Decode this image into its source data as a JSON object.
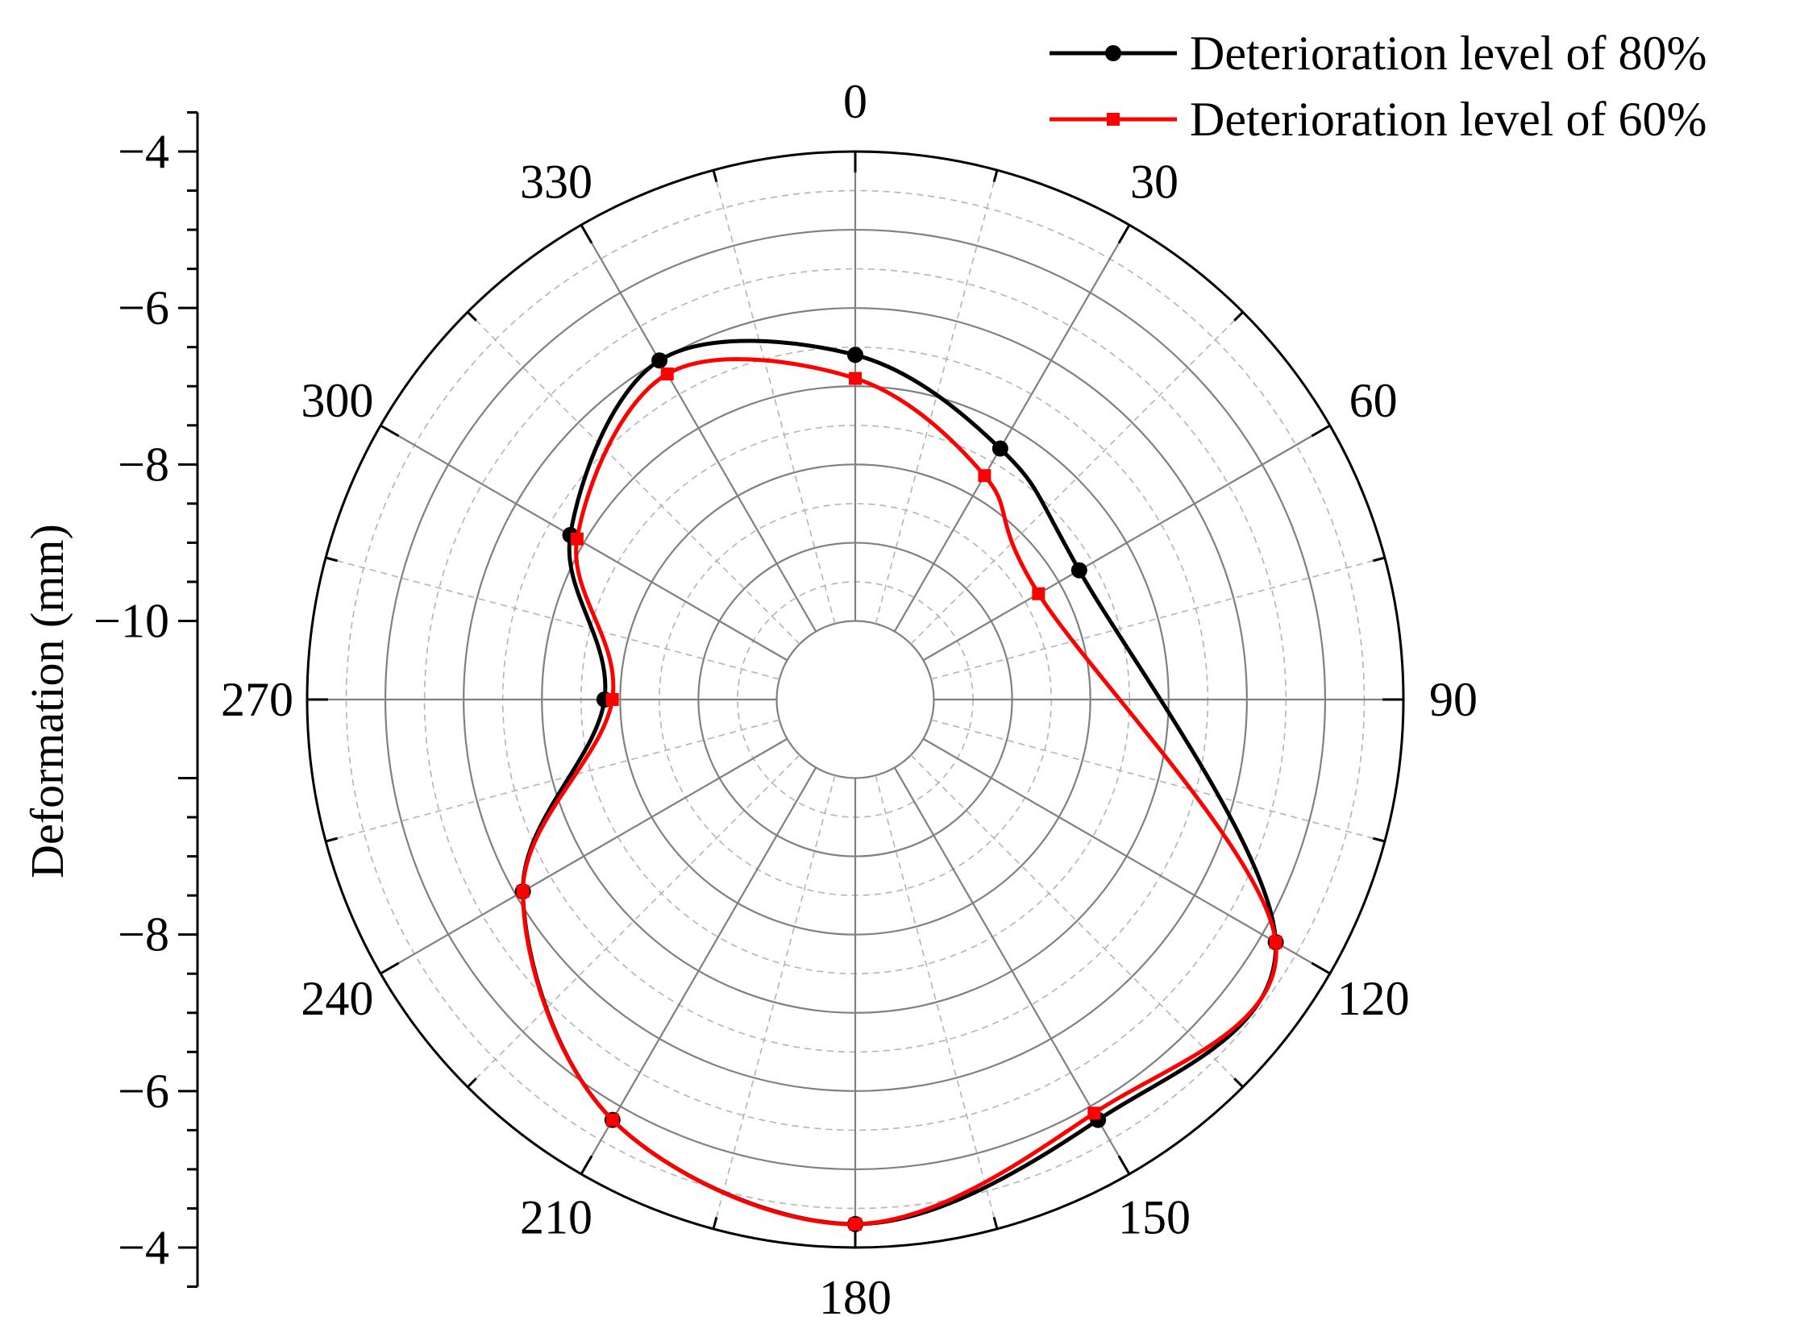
{
  "chart_data": {
    "type": "polar-line",
    "ylabel": "Deformation (mm)",
    "radial_axis": {
      "range": [
        -4,
        -10
      ],
      "major_ticks": [
        -4,
        -6,
        -8,
        -10
      ],
      "tick_labels_upper": [
        "−4",
        "−6",
        "−8",
        "−10"
      ],
      "tick_labels_lower": [
        "−8",
        "−6",
        "−4"
      ]
    },
    "angular_axis": {
      "unit": "degrees",
      "direction": "clockwise",
      "zero_at": "top",
      "tick_labels": [
        "0",
        "30",
        "60",
        "90",
        "120",
        "150",
        "180",
        "210",
        "240",
        "270",
        "300",
        "330"
      ]
    },
    "grid": true,
    "legend_position": "top-right",
    "series": [
      {
        "name": "Deterioration level of 80%",
        "color": "#000000",
        "marker": "circle",
        "angles": [
          0,
          30,
          60,
          120,
          150,
          180,
          210,
          240,
          270,
          300,
          330
        ],
        "values": [
          -6.6,
          -7.3,
          -7.7,
          -4.8,
          -4.8,
          -4.3,
          -4.8,
          -6.1,
          -7.8,
          -6.8,
          -6.0
        ]
      },
      {
        "name": "Deterioration level of 60%",
        "color": "#ff0000",
        "marker": "square",
        "angles": [
          0,
          30,
          60,
          120,
          150,
          180,
          210,
          240,
          270,
          300,
          330
        ],
        "values": [
          -6.9,
          -7.7,
          -8.3,
          -4.8,
          -4.9,
          -4.3,
          -4.8,
          -6.1,
          -7.9,
          -6.9,
          -6.2
        ]
      }
    ]
  }
}
